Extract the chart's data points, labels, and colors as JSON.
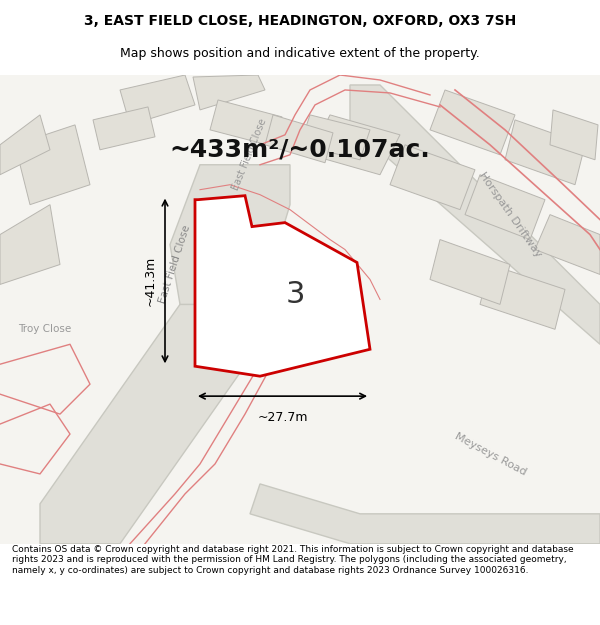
{
  "title_line1": "3, EAST FIELD CLOSE, HEADINGTON, OXFORD, OX3 7SH",
  "title_line2": "Map shows position and indicative extent of the property.",
  "area_label": "~433m²/~0.107ac.",
  "width_label": "~27.7m",
  "height_label": "~41.3m",
  "plot_number": "3",
  "footer_text": "Contains OS data © Crown copyright and database right 2021. This information is subject to Crown copyright and database rights 2023 and is reproduced with the permission of HM Land Registry. The polygons (including the associated geometry, namely x, y co-ordinates) are subject to Crown copyright and database rights 2023 Ordnance Survey 100026316.",
  "bg_color": "#f5f5f0",
  "map_bg": "#f8f8f5",
  "road_fill": "#e8e8e8",
  "road_stroke": "#cccccc",
  "building_fill": "#e0e0d8",
  "building_stroke": "#bbbbbb",
  "highlight_fill": "#ffffff",
  "highlight_stroke": "#cc0000",
  "road_label_color": "#888888",
  "pink_road_color": "#e08080",
  "dim_line_color": "#000000"
}
